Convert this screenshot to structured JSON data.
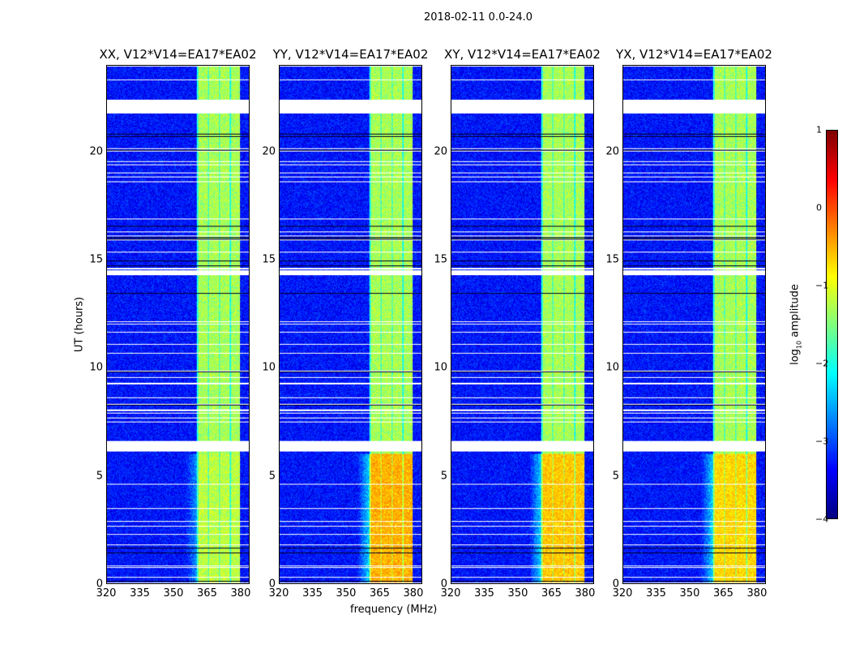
{
  "figure_title": "2018-02-11 0.0-24.0",
  "chart_data": {
    "type": "heatmap",
    "title": "2018-02-11 0.0-24.0",
    "xlabel": "frequency (MHz)",
    "ylabel": "UT (hours)",
    "xlim": [
      320,
      384
    ],
    "ylim": [
      0,
      24
    ],
    "xticks": [
      "320",
      "335",
      "350",
      "365",
      "380"
    ],
    "xtick_values": [
      320,
      335,
      350,
      365,
      380
    ],
    "yticks": [
      "0",
      "5",
      "10",
      "15",
      "20"
    ],
    "ytick_values": [
      0,
      5,
      10,
      15,
      20
    ],
    "panels": [
      {
        "title": "XX, V12*V14=EA17*EA02",
        "early_band_level": -1.2
      },
      {
        "title": "YY, V12*V14=EA17*EA02",
        "early_band_level": -0.5
      },
      {
        "title": "XY, V12*V14=EA17*EA02",
        "early_band_level": -0.6
      },
      {
        "title": "YX, V12*V14=EA17*EA02",
        "early_band_level": -0.7
      }
    ],
    "background_level": -3.3,
    "band_mhz": [
      360.5,
      380
    ],
    "band_level": -1.3,
    "flagged_hours": [
      [
        21.8,
        22.4
      ],
      [
        14.3,
        14.5
      ],
      [
        6.1,
        6.6
      ]
    ],
    "colorbar": {
      "label": "log10 amplitude",
      "label_main": "log",
      "label_sub": "10",
      "label_rest": " amplitude",
      "range": [
        -4,
        1
      ],
      "ticks": [
        "1",
        "0",
        "−1",
        "−2",
        "−3",
        "−4"
      ],
      "tick_values": [
        1,
        0,
        -1,
        -2,
        -3,
        -4
      ],
      "colormap": "jet"
    }
  }
}
